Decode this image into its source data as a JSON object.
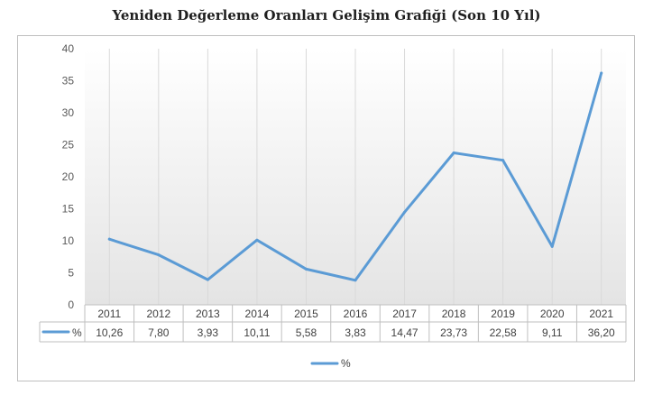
{
  "chart_data": {
    "type": "line",
    "title": "Yeniden Değerleme Oranları Gelişim Grafiği (Son 10 Yıl)",
    "categories": [
      "2011",
      "2012",
      "2013",
      "2014",
      "2015",
      "2016",
      "2017",
      "2018",
      "2019",
      "2020",
      "2021"
    ],
    "series": [
      {
        "name": "%",
        "values": [
          10.26,
          7.8,
          3.93,
          10.11,
          5.58,
          3.83,
          14.47,
          23.73,
          22.58,
          9.11,
          36.2
        ],
        "labels": [
          "10,26",
          "7,80",
          "3,93",
          "10,11",
          "5,58",
          "3,83",
          "14,47",
          "23,73",
          "22,58",
          "9,11",
          "36,20"
        ],
        "color": "#5b9bd5"
      }
    ],
    "y_ticks": [
      "0",
      "5",
      "10",
      "15",
      "20",
      "25",
      "30",
      "35",
      "40"
    ],
    "ylim": [
      0,
      40
    ],
    "grid": "vertical",
    "data_table": true,
    "legend_position": "bottom"
  }
}
